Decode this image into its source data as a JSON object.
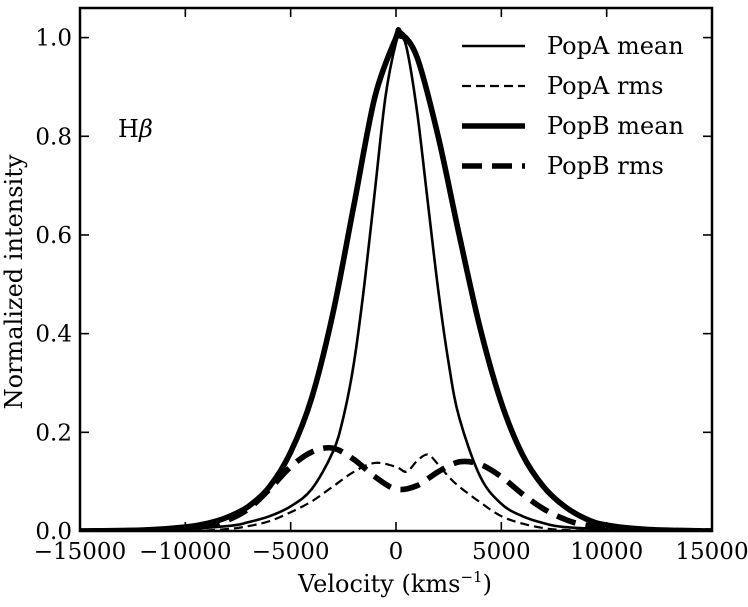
{
  "chart_data": {
    "type": "line",
    "title": "",
    "xlabel": "Velocity (kms",
    "xlabel_sup": "−1",
    "xlabel_close": ")",
    "ylabel": "Normalized intensity",
    "xlim": [
      -15000,
      15000
    ],
    "ylim": [
      0.0,
      1.06
    ],
    "x_ticks": [
      -15000,
      -10000,
      -5000,
      0,
      5000,
      10000,
      15000
    ],
    "x_tick_labels": [
      "−15000",
      "−10000",
      "−5000",
      "0",
      "5000",
      "10000",
      "15000"
    ],
    "y_ticks": [
      0.0,
      0.2,
      0.4,
      0.6,
      0.8,
      1.0
    ],
    "y_tick_labels": [
      "0.0",
      "0.2",
      "0.4",
      "0.6",
      "0.8",
      "1.0"
    ],
    "grid": false,
    "legend_position": "top-right",
    "annotation": {
      "main": "H",
      "greek": "β"
    },
    "series": [
      {
        "name": "PopA mean",
        "style": "thin-solid",
        "x": [
          -15000,
          -11000,
          -8000,
          -7000,
          -6000,
          -5000,
          -4000,
          -3000,
          -2500,
          -2000,
          -1500,
          -1000,
          -500,
          0,
          200,
          500,
          1000,
          1500,
          2000,
          2500,
          3000,
          4000,
          5000,
          6000,
          7000,
          8000,
          11000,
          15000
        ],
        "y": [
          0.0,
          0.002,
          0.01,
          0.018,
          0.03,
          0.05,
          0.085,
          0.16,
          0.23,
          0.34,
          0.5,
          0.69,
          0.88,
          0.99,
          1.0,
          0.98,
          0.85,
          0.67,
          0.49,
          0.34,
          0.23,
          0.11,
          0.055,
          0.03,
          0.016,
          0.008,
          0.002,
          0.0
        ]
      },
      {
        "name": "PopA rms",
        "style": "thin-dashed",
        "x": [
          -15000,
          -10000,
          -8000,
          -7000,
          -6000,
          -5000,
          -4000,
          -3000,
          -2000,
          -1000,
          0,
          500,
          1000,
          1500,
          2000,
          2500,
          3000,
          4000,
          5000,
          6000,
          7000,
          8000,
          10000,
          15000
        ],
        "y": [
          0.0,
          0.0,
          0.004,
          0.01,
          0.02,
          0.038,
          0.06,
          0.09,
          0.12,
          0.138,
          0.13,
          0.12,
          0.142,
          0.155,
          0.135,
          0.11,
          0.09,
          0.058,
          0.03,
          0.015,
          0.006,
          0.002,
          0.0,
          0.0
        ]
      },
      {
        "name": "PopB mean",
        "style": "thick-solid",
        "x": [
          -15000,
          -12000,
          -10000,
          -9000,
          -8000,
          -7000,
          -6000,
          -5000,
          -4000,
          -3000,
          -2000,
          -1000,
          0,
          200,
          1000,
          2000,
          3000,
          4000,
          5000,
          6000,
          7000,
          8000,
          9000,
          10000,
          12000,
          15000
        ],
        "y": [
          0.0,
          0.002,
          0.008,
          0.015,
          0.028,
          0.05,
          0.09,
          0.16,
          0.27,
          0.44,
          0.66,
          0.88,
          1.0,
          1.01,
          0.96,
          0.8,
          0.6,
          0.41,
          0.26,
          0.155,
          0.09,
          0.05,
          0.025,
          0.012,
          0.003,
          0.0
        ]
      },
      {
        "name": "PopB rms",
        "style": "thick-dashed",
        "x": [
          -15000,
          -11000,
          -9000,
          -8000,
          -7000,
          -6000,
          -5000,
          -4000,
          -3000,
          -2000,
          -1000,
          0,
          1000,
          2000,
          3000,
          4000,
          5000,
          6000,
          7000,
          8000,
          9000,
          11000,
          15000
        ],
        "y": [
          0.0,
          0.002,
          0.01,
          0.022,
          0.045,
          0.085,
          0.13,
          0.16,
          0.168,
          0.145,
          0.11,
          0.085,
          0.092,
          0.12,
          0.14,
          0.135,
          0.11,
          0.075,
          0.045,
          0.024,
          0.012,
          0.003,
          0.0
        ]
      }
    ]
  }
}
